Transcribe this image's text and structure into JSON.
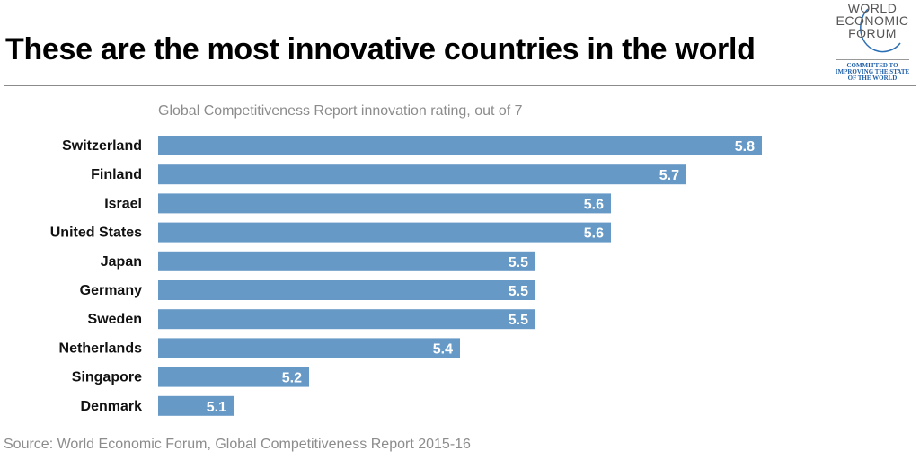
{
  "header": {
    "title": "These are the most innovative countries in the world"
  },
  "logo": {
    "lines": [
      "WORLD",
      "ECONOMIC",
      "FORUM"
    ],
    "tagline": [
      "COMMITTED TO",
      "IMPROVING THE STATE",
      "OF THE WORLD"
    ]
  },
  "footer": {
    "source": "Source: World Economic Forum, Global Competitiveness Report 2015-16"
  },
  "colors": {
    "bar": "#6699c6"
  },
  "chart_data": {
    "type": "bar",
    "orientation": "horizontal",
    "title": "These are the most innovative countries in the world",
    "subtitle": "Global Competitiveness Report innovation rating, out of 7",
    "xlabel": "",
    "ylabel": "",
    "xlim": [
      5.0,
      5.8
    ],
    "grid": false,
    "legend": "none",
    "categories": [
      "Switzerland",
      "Finland",
      "Israel",
      "United States",
      "Japan",
      "Germany",
      "Sweden",
      "Netherlands",
      "Singapore",
      "Denmark"
    ],
    "values": [
      5.8,
      5.7,
      5.6,
      5.6,
      5.5,
      5.5,
      5.5,
      5.4,
      5.2,
      5.1
    ],
    "value_labels": [
      "5.8",
      "5.7",
      "5.6",
      "5.6",
      "5.5",
      "5.5",
      "5.5",
      "5.4",
      "5.2",
      "5.1"
    ]
  }
}
